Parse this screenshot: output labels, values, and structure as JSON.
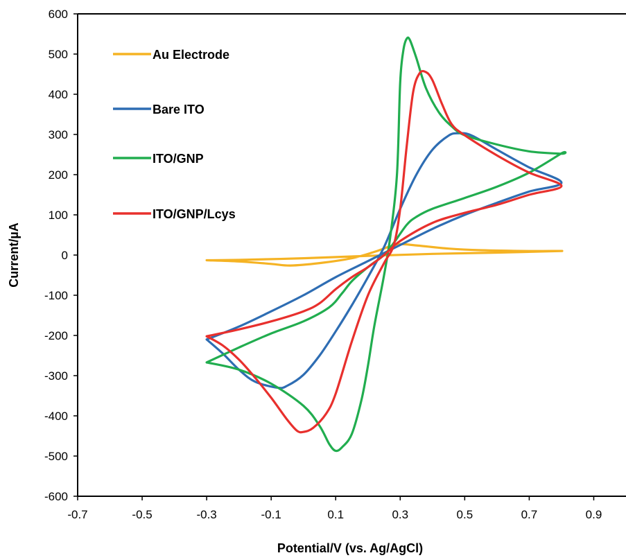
{
  "chart_data": {
    "type": "line",
    "title": "",
    "xlabel": "Potential/V (vs. Ag/AgCl)",
    "ylabel": "Current/µA",
    "xlim": [
      -0.7,
      1.0
    ],
    "ylim": [
      -600,
      600
    ],
    "x_ticks": [
      -0.7,
      -0.5,
      -0.3,
      -0.1,
      0.1,
      0.3,
      0.5,
      0.7,
      0.9
    ],
    "x_tick_labels": [
      "-0.7",
      "-0.5",
      "-0.3",
      "-0.1",
      "0.1",
      "0.3",
      "0.5",
      "0.7",
      "0.9"
    ],
    "y_ticks": [
      -600,
      -500,
      -400,
      -300,
      -200,
      -100,
      0,
      100,
      200,
      300,
      400,
      500,
      600
    ],
    "y_tick_labels": [
      "-600",
      "-500",
      "-400",
      "-300",
      "-200",
      "-100",
      "0",
      "100",
      "200",
      "300",
      "400",
      "500",
      "600"
    ],
    "grid": false,
    "legend_position": "top-left",
    "series": [
      {
        "name": "Au Electrode",
        "color": "#F5B324",
        "points": [
          [
            -0.3,
            -13
          ],
          [
            -0.2,
            -16
          ],
          [
            -0.1,
            -22
          ],
          [
            -0.04,
            -26
          ],
          [
            0.05,
            -20
          ],
          [
            0.15,
            -8
          ],
          [
            0.22,
            8
          ],
          [
            0.27,
            22
          ],
          [
            0.3,
            27
          ],
          [
            0.35,
            24
          ],
          [
            0.45,
            16
          ],
          [
            0.55,
            12
          ],
          [
            0.7,
            10
          ],
          [
            0.8,
            10
          ],
          [
            0.6,
            6
          ],
          [
            0.4,
            3
          ],
          [
            0.2,
            -2
          ],
          [
            0.0,
            -8
          ],
          [
            -0.2,
            -12
          ],
          [
            -0.3,
            -13
          ]
        ]
      },
      {
        "name": "Bare ITO",
        "color": "#2E6DB3",
        "points": [
          [
            -0.3,
            -210
          ],
          [
            -0.25,
            -245
          ],
          [
            -0.2,
            -285
          ],
          [
            -0.15,
            -315
          ],
          [
            -0.08,
            -330
          ],
          [
            -0.05,
            -325
          ],
          [
            0.0,
            -298
          ],
          [
            0.05,
            -250
          ],
          [
            0.1,
            -190
          ],
          [
            0.15,
            -125
          ],
          [
            0.2,
            -55
          ],
          [
            0.25,
            20
          ],
          [
            0.3,
            115
          ],
          [
            0.35,
            200
          ],
          [
            0.4,
            262
          ],
          [
            0.45,
            297
          ],
          [
            0.48,
            303
          ],
          [
            0.52,
            298
          ],
          [
            0.6,
            262
          ],
          [
            0.7,
            218
          ],
          [
            0.8,
            180
          ],
          [
            0.7,
            158
          ],
          [
            0.6,
            130
          ],
          [
            0.5,
            100
          ],
          [
            0.4,
            65
          ],
          [
            0.3,
            25
          ],
          [
            0.2,
            -15
          ],
          [
            0.1,
            -55
          ],
          [
            0.0,
            -100
          ],
          [
            -0.1,
            -140
          ],
          [
            -0.2,
            -178
          ],
          [
            -0.3,
            -210
          ]
        ]
      },
      {
        "name": "ITO/GNP",
        "color": "#21AD4F",
        "points": [
          [
            -0.3,
            -267
          ],
          [
            -0.2,
            -285
          ],
          [
            -0.1,
            -320
          ],
          [
            0.0,
            -375
          ],
          [
            0.05,
            -425
          ],
          [
            0.08,
            -470
          ],
          [
            0.1,
            -487
          ],
          [
            0.12,
            -478
          ],
          [
            0.15,
            -445
          ],
          [
            0.18,
            -360
          ],
          [
            0.2,
            -275
          ],
          [
            0.22,
            -175
          ],
          [
            0.25,
            -50
          ],
          [
            0.27,
            50
          ],
          [
            0.29,
            200
          ],
          [
            0.3,
            430
          ],
          [
            0.31,
            510
          ],
          [
            0.32,
            538
          ],
          [
            0.33,
            535
          ],
          [
            0.35,
            490
          ],
          [
            0.38,
            415
          ],
          [
            0.42,
            355
          ],
          [
            0.46,
            320
          ],
          [
            0.5,
            298
          ],
          [
            0.6,
            275
          ],
          [
            0.7,
            258
          ],
          [
            0.8,
            252
          ],
          [
            0.8,
            253
          ],
          [
            0.7,
            205
          ],
          [
            0.6,
            170
          ],
          [
            0.5,
            142
          ],
          [
            0.4,
            115
          ],
          [
            0.35,
            95
          ],
          [
            0.32,
            75
          ],
          [
            0.28,
            30
          ],
          [
            0.25,
            0
          ],
          [
            0.2,
            -30
          ],
          [
            0.15,
            -65
          ],
          [
            0.12,
            -95
          ],
          [
            0.08,
            -130
          ],
          [
            0.0,
            -165
          ],
          [
            -0.1,
            -195
          ],
          [
            -0.2,
            -230
          ],
          [
            -0.3,
            -267
          ]
        ]
      },
      {
        "name": "ITO/GNP/Lcys",
        "color": "#E8302D",
        "points": [
          [
            -0.3,
            -202
          ],
          [
            -0.25,
            -225
          ],
          [
            -0.2,
            -260
          ],
          [
            -0.15,
            -305
          ],
          [
            -0.1,
            -355
          ],
          [
            -0.05,
            -410
          ],
          [
            -0.02,
            -437
          ],
          [
            0.0,
            -440
          ],
          [
            0.03,
            -430
          ],
          [
            0.07,
            -395
          ],
          [
            0.1,
            -345
          ],
          [
            0.15,
            -215
          ],
          [
            0.2,
            -100
          ],
          [
            0.25,
            -20
          ],
          [
            0.28,
            25
          ],
          [
            0.3,
            115
          ],
          [
            0.32,
            270
          ],
          [
            0.34,
            405
          ],
          [
            0.36,
            452
          ],
          [
            0.38,
            455
          ],
          [
            0.4,
            435
          ],
          [
            0.43,
            375
          ],
          [
            0.46,
            325
          ],
          [
            0.5,
            298
          ],
          [
            0.6,
            248
          ],
          [
            0.7,
            205
          ],
          [
            0.8,
            172
          ],
          [
            0.7,
            150
          ],
          [
            0.6,
            125
          ],
          [
            0.5,
            105
          ],
          [
            0.4,
            80
          ],
          [
            0.3,
            35
          ],
          [
            0.25,
            0
          ],
          [
            0.2,
            -30
          ],
          [
            0.15,
            -55
          ],
          [
            0.1,
            -85
          ],
          [
            0.05,
            -120
          ],
          [
            0.0,
            -140
          ],
          [
            -0.1,
            -165
          ],
          [
            -0.2,
            -185
          ],
          [
            -0.3,
            -202
          ]
        ]
      }
    ]
  }
}
